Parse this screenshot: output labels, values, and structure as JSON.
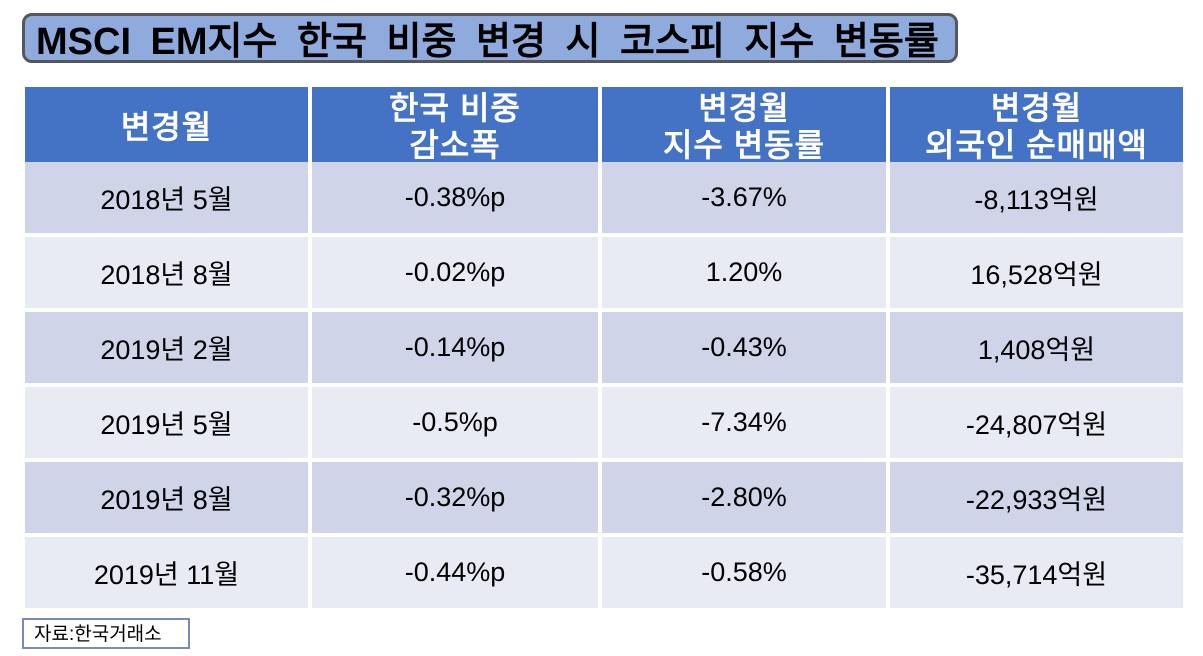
{
  "title": "MSCI EM지수 한국 비중 변경 시 코스피 지수 변동률",
  "source_note": "자료:한국거래소",
  "colors": {
    "title_fill": "#8FAADC",
    "title_border": "#54575C",
    "header_fill": "#4472C4",
    "header_text": "#FFFFFF",
    "band_dark": "#CFD4E8",
    "band_light": "#E9EBF4"
  },
  "chart_data": {
    "type": "table",
    "columns": [
      "변경월",
      "한국 비중\n감소폭",
      "변경월\n지수 변동률",
      "변경월\n외국인 순매매액"
    ],
    "rows": [
      [
        "2018년 5월",
        "-0.38%p",
        "-3.67%",
        "-8,113억원"
      ],
      [
        "2018년 8월",
        "-0.02%p",
        "1.20%",
        "16,528억원"
      ],
      [
        "2019년 2월",
        "-0.14%p",
        "-0.43%",
        "1,408억원"
      ],
      [
        "2019년 5월",
        "-0.5%p",
        "-7.34%",
        "-24,807억원"
      ],
      [
        "2019년 8월",
        "-0.32%p",
        "-2.80%",
        "-22,933억원"
      ],
      [
        "2019년 11월",
        "-0.44%p",
        "-0.58%",
        "-35,714억원"
      ]
    ]
  }
}
